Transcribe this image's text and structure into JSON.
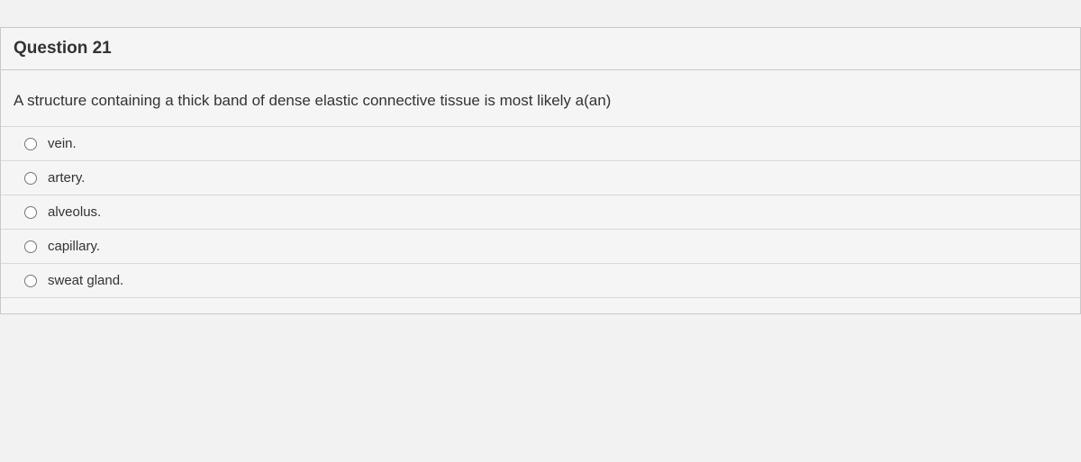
{
  "question": {
    "title": "Question 21",
    "prompt": "A structure containing a thick band of dense elastic connective tissue is most likely a(an)",
    "options": [
      {
        "label": "vein."
      },
      {
        "label": "artery."
      },
      {
        "label": "alveolus."
      },
      {
        "label": "capillary."
      },
      {
        "label": "sweat gland."
      }
    ]
  },
  "colors": {
    "background": "#f2f2f2",
    "border": "#c8c8c8",
    "text": "#333333"
  }
}
